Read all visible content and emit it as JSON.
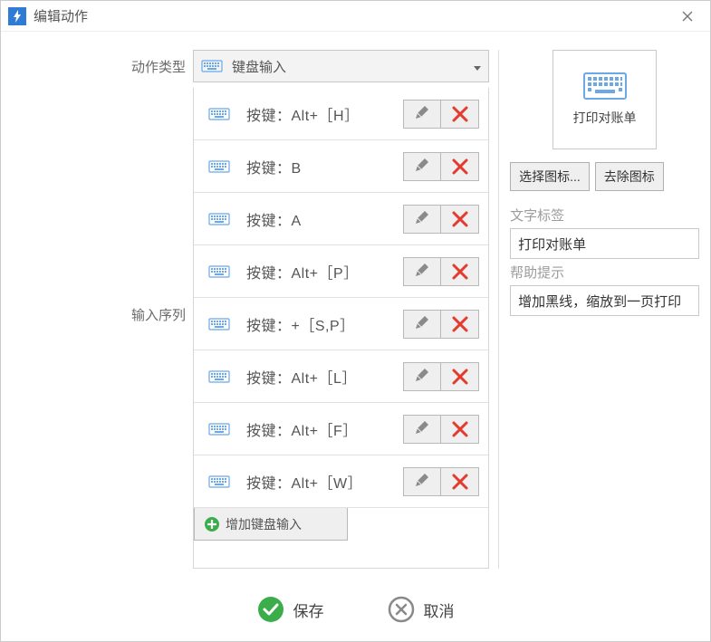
{
  "window": {
    "title": "编辑动作"
  },
  "labels": {
    "action_type": "动作类型",
    "input_sequence": "输入序列",
    "text_label": "文字标签",
    "help_hint": "帮助提示"
  },
  "action_type": {
    "selected": "键盘输入"
  },
  "sequence": {
    "prefix": "按键：",
    "items": [
      {
        "key": "Alt+［H］"
      },
      {
        "key": "B"
      },
      {
        "key": "A"
      },
      {
        "key": "Alt+［P］"
      },
      {
        "key": "+［S,P］"
      },
      {
        "key": "Alt+［L］"
      },
      {
        "key": "Alt+［F］"
      },
      {
        "key": "Alt+［W］"
      }
    ],
    "add_label": "增加键盘输入"
  },
  "right": {
    "preview_label": "打印对账单",
    "choose_icon": "选择图标...",
    "remove_icon": "去除图标",
    "text_value": "打印对账单",
    "help_value": "增加黑线，缩放到一页打印"
  },
  "footer": {
    "save": "保存",
    "cancel": "取消"
  },
  "colors": {
    "accent_blue": "#2E7CD6",
    "keyboard_stroke": "#6AA8E8",
    "delete_red": "#E53A2E",
    "edit_grey": "#7a7a7a",
    "ok_green": "#3BAE4B",
    "cancel_grey": "#8a8a8a"
  }
}
